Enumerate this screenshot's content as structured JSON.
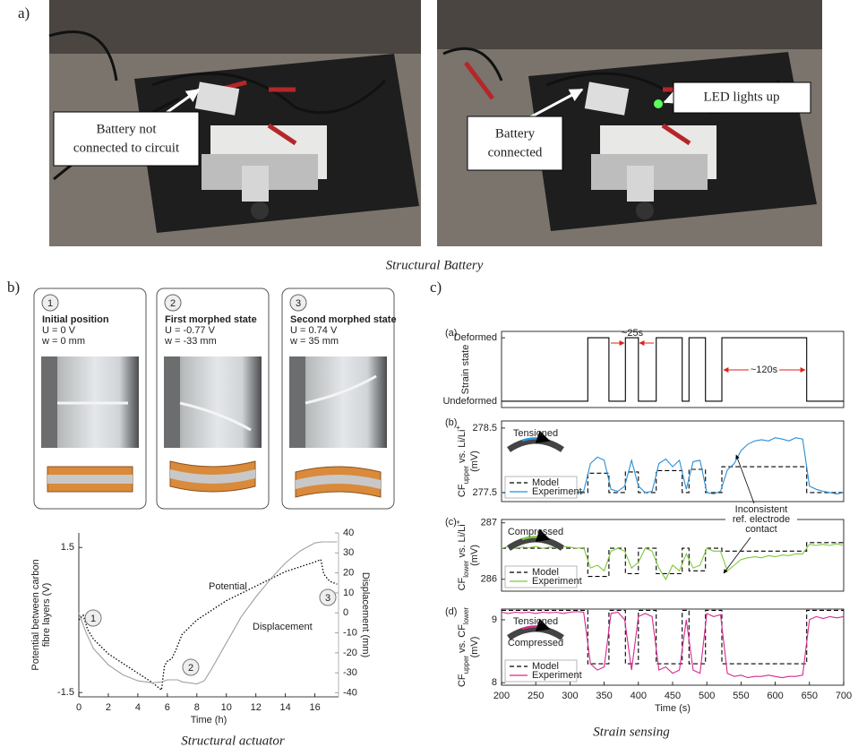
{
  "panel_a": {
    "label": "a)",
    "callout_left": [
      "Battery not",
      "connected to circuit"
    ],
    "callout_right": [
      "Battery",
      "connected"
    ],
    "callout_led": "LED lights up",
    "caption": "Structural Battery"
  },
  "panel_b": {
    "label": "b)",
    "caption": "Structural actuator",
    "states": [
      {
        "number": "1",
        "title": "Initial position",
        "voltage": "U = 0 V",
        "displacement": "w = 0 mm"
      },
      {
        "number": "2",
        "title": "First morphed state",
        "voltage": "U = -0.77 V",
        "displacement": "w = -33 mm"
      },
      {
        "number": "3",
        "title": "Second morphed state",
        "voltage": "U = 0.74 V",
        "displacement": "w = 35 mm"
      }
    ],
    "markers": [
      "1",
      "2",
      "3"
    ]
  },
  "panel_c": {
    "label": "c)",
    "caption": "Strain sensing",
    "subplot_labels": [
      "(a)",
      "(b)",
      "(c)",
      "(d)"
    ],
    "note": [
      "Inconsistent",
      "ref. electrode",
      "contact"
    ]
  },
  "chart_data": [
    {
      "type": "line",
      "xlabel": "Time (h)",
      "ylabel": [
        "Potential between carbon",
        "fibre layers (V)"
      ],
      "y2label": "Displacement (mm)",
      "xlim": [
        0,
        17.6
      ],
      "xticks": [
        0,
        2,
        4,
        6,
        8,
        10,
        12,
        14,
        16
      ],
      "ylim": [
        -1.59,
        1.8
      ],
      "yticks": [
        -1.5,
        1.5
      ],
      "y2lim": [
        -42,
        40
      ],
      "y2ticks": [
        -40,
        -30,
        -20,
        -10,
        0,
        10,
        20,
        30,
        40
      ],
      "series": [
        {
          "name": "Potential",
          "color": "#000000",
          "style": "dotted",
          "x": [
            0,
            0.3,
            0.6,
            1,
            2,
            3,
            4,
            5,
            5.6,
            5.8,
            6,
            6.3,
            6.6,
            7,
            8,
            9,
            10,
            11,
            12,
            13,
            14,
            15,
            16,
            16.4,
            16.6,
            17,
            17.5
          ],
          "values": [
            0,
            0.1,
            -0.2,
            -0.4,
            -0.7,
            -0.9,
            -1.1,
            -1.3,
            -1.45,
            -0.95,
            -0.85,
            -0.8,
            -0.6,
            -0.3,
            0,
            0.2,
            0.4,
            0.55,
            0.7,
            0.85,
            1,
            1.1,
            1.2,
            1.25,
            0.95,
            0.8,
            0.74
          ]
        },
        {
          "name": "Displacement",
          "color": "#a0a0a0",
          "axis": "y2",
          "x": [
            0,
            0.5,
            1,
            2,
            3,
            4,
            5,
            5.6,
            6,
            6.7,
            7,
            8,
            8.5,
            9,
            10,
            11,
            12,
            13,
            14,
            15,
            16,
            16.5,
            17,
            17.5
          ],
          "values": [
            0,
            -10,
            -18,
            -26,
            -31,
            -34,
            -35,
            -34.5,
            -33.5,
            -33.5,
            -34.5,
            -35.5,
            -34,
            -28,
            -15,
            -2,
            8,
            17,
            25,
            31,
            35,
            35.5,
            35.5,
            35.5
          ]
        }
      ]
    },
    {
      "type": "line",
      "frame": true,
      "ylabel": [
        {
          "text": "Strain state"
        }
      ],
      "annotations": [
        "~25s",
        "~120s"
      ],
      "xlim": [
        200,
        700
      ],
      "ylim": [
        -0.1,
        1.1
      ],
      "yticks": [
        {
          "value": 1,
          "label": "Deformed"
        },
        {
          "value": 0,
          "label": "Undeformed"
        }
      ],
      "series": [
        {
          "color": "#000000",
          "x": [
            200,
            326,
            326,
            357,
            357,
            381,
            381,
            400,
            400,
            426,
            426,
            464,
            464,
            474,
            474,
            498,
            498,
            522,
            522,
            646,
            646,
            700
          ],
          "values": [
            0,
            0,
            1,
            1,
            0,
            0,
            1,
            1,
            0,
            0,
            1,
            1,
            0,
            0,
            1,
            1,
            0,
            0,
            1,
            1,
            0,
            0
          ]
        }
      ]
    },
    {
      "type": "line",
      "frame": true,
      "legend": "lower left",
      "inset_labels": [
        "Tensioned"
      ],
      "ylabel": [
        {
          "text": "CF"
        },
        {
          "text": "upper",
          "shift": "sub"
        },
        {
          "text": " vs. Li/Li"
        },
        {
          "text": "+",
          "shift": "super"
        }
      ],
      "yunit": "(mV)",
      "xlim": [
        200,
        700
      ],
      "ylim": [
        277.36,
        278.61
      ],
      "yticks": [
        277.5,
        278.5
      ],
      "series": [
        {
          "name": "Model",
          "color": "#000000",
          "style": "dashed",
          "x": [
            200,
            326,
            326,
            357,
            357,
            381,
            381,
            400,
            400,
            426,
            426,
            464,
            464,
            474,
            474,
            498,
            498,
            522,
            522,
            646,
            646,
            700
          ],
          "values": [
            277.5,
            277.5,
            277.8,
            277.8,
            277.5,
            277.5,
            277.82,
            277.82,
            277.5,
            277.5,
            277.84,
            277.84,
            277.5,
            277.5,
            277.86,
            277.86,
            277.5,
            277.5,
            277.9,
            277.9,
            277.5,
            277.5
          ]
        },
        {
          "name": "Experiment",
          "color": "#2a8fd6",
          "x": [
            200,
            210,
            220,
            230,
            240,
            250,
            260,
            270,
            280,
            290,
            300,
            310,
            320,
            330,
            340,
            350,
            360,
            370,
            380,
            390,
            400,
            410,
            420,
            430,
            440,
            450,
            460,
            470,
            480,
            490,
            500,
            510,
            520,
            530,
            540,
            550,
            560,
            570,
            580,
            590,
            600,
            610,
            620,
            630,
            640,
            650,
            660,
            670,
            680,
            690,
            700
          ],
          "values": [
            277.5,
            277.48,
            277.52,
            277.49,
            277.51,
            277.5,
            277.47,
            277.52,
            277.5,
            277.49,
            277.51,
            277.5,
            277.52,
            277.95,
            278.05,
            278,
            277.55,
            277.52,
            277.6,
            278,
            277.6,
            277.5,
            277.52,
            277.95,
            278.02,
            277.9,
            278,
            277.55,
            277.98,
            278,
            277.5,
            277.48,
            277.52,
            277.85,
            277.95,
            278.15,
            278.25,
            278.3,
            278.32,
            278.3,
            278.35,
            278.33,
            278.3,
            278.35,
            278.33,
            277.6,
            277.55,
            277.52,
            277.5,
            277.48,
            277.5
          ]
        }
      ]
    },
    {
      "type": "line",
      "frame": true,
      "legend": "lower left",
      "inset_labels": [
        "Compressed"
      ],
      "ylabel": [
        {
          "text": "CF"
        },
        {
          "text": "lower",
          "shift": "sub"
        },
        {
          "text": " vs. Li/Li"
        },
        {
          "text": "+",
          "shift": "super"
        }
      ],
      "yunit": "(mV)",
      "xlim": [
        200,
        700
      ],
      "ylim": [
        285.79,
        287.06
      ],
      "yticks": [
        286,
        287
      ],
      "series": [
        {
          "name": "Model",
          "color": "#000000",
          "style": "dashed",
          "x": [
            200,
            326,
            326,
            357,
            357,
            381,
            381,
            400,
            400,
            426,
            426,
            464,
            464,
            474,
            474,
            498,
            498,
            522,
            522,
            646,
            646,
            700
          ],
          "values": [
            286.55,
            286.55,
            286.05,
            286.05,
            286.55,
            286.55,
            286.1,
            286.1,
            286.55,
            286.55,
            286.1,
            286.1,
            286.55,
            286.55,
            286.15,
            286.15,
            286.55,
            286.55,
            286.5,
            286.5,
            286.65,
            286.65
          ]
        },
        {
          "name": "Experiment",
          "color": "#7ec83a",
          "x": [
            200,
            210,
            220,
            230,
            240,
            250,
            260,
            270,
            280,
            290,
            300,
            310,
            320,
            330,
            340,
            350,
            360,
            370,
            380,
            390,
            400,
            410,
            420,
            430,
            440,
            450,
            460,
            470,
            480,
            490,
            500,
            510,
            520,
            530,
            540,
            550,
            560,
            570,
            580,
            590,
            600,
            610,
            620,
            630,
            640,
            650,
            660,
            670,
            680,
            690,
            700
          ],
          "values": [
            286.55,
            286.58,
            286.55,
            286.57,
            286.56,
            286.58,
            286.55,
            286.57,
            286.56,
            286.58,
            286.57,
            286.55,
            286.56,
            286.2,
            286.25,
            286.15,
            286.5,
            286.55,
            286.5,
            286.2,
            286.3,
            286.55,
            286.5,
            286.2,
            286,
            286.25,
            286.15,
            286.45,
            286.2,
            286.25,
            286.55,
            286.5,
            286.5,
            286.15,
            286.25,
            286.35,
            286.38,
            286.4,
            286.38,
            286.42,
            286.4,
            286.43,
            286.42,
            286.45,
            286.45,
            286.62,
            286.6,
            286.62,
            286.6,
            286.63,
            286.6
          ]
        }
      ]
    },
    {
      "type": "line",
      "frame": true,
      "legend": "lower left",
      "inset_labels": [
        "Tensioned",
        "Compressed"
      ],
      "xlabel": "Time (s)",
      "ylabel": [
        {
          "text": "CF"
        },
        {
          "text": "upper",
          "shift": "sub"
        },
        {
          "text": " vs. CF"
        },
        {
          "text": "lower",
          "shift": "sub"
        }
      ],
      "yunit": "(mV)",
      "xlim": [
        200,
        700
      ],
      "xticks": [
        200,
        250,
        300,
        350,
        400,
        450,
        500,
        550,
        600,
        650,
        700
      ],
      "ylim": [
        7.96,
        9.17
      ],
      "yticks": [
        8,
        9
      ],
      "series": [
        {
          "name": "Model",
          "color": "#000000",
          "style": "dashed",
          "x": [
            200,
            326,
            326,
            357,
            357,
            381,
            381,
            400,
            400,
            426,
            426,
            464,
            464,
            474,
            474,
            498,
            498,
            522,
            522,
            646,
            646,
            700
          ],
          "values": [
            9.15,
            9.15,
            8.3,
            8.3,
            9.15,
            9.15,
            8.3,
            8.3,
            9.15,
            9.15,
            8.3,
            8.3,
            9.15,
            9.15,
            8.3,
            8.3,
            9.15,
            9.15,
            8.3,
            8.3,
            9.15,
            9.15
          ]
        },
        {
          "name": "Experiment",
          "color": "#d6288f",
          "x": [
            200,
            210,
            220,
            230,
            240,
            250,
            260,
            270,
            280,
            290,
            300,
            310,
            320,
            330,
            340,
            350,
            360,
            370,
            380,
            390,
            400,
            410,
            420,
            430,
            440,
            450,
            460,
            470,
            480,
            490,
            500,
            510,
            520,
            530,
            540,
            550,
            560,
            570,
            580,
            590,
            600,
            610,
            620,
            630,
            640,
            650,
            660,
            670,
            680,
            690,
            700
          ],
          "values": [
            9.12,
            9.1,
            9.12,
            9.11,
            9.12,
            9.1,
            9.12,
            9.11,
            9.12,
            9.1,
            9.12,
            9.13,
            9.12,
            8.3,
            8.2,
            8.25,
            9.1,
            9.12,
            9,
            8.2,
            9.05,
            9.1,
            9.05,
            8.2,
            8.25,
            8.15,
            8.2,
            9,
            8.2,
            8.15,
            9.1,
            9.05,
            9.08,
            8.15,
            8.1,
            8.12,
            8.08,
            8.1,
            8.1,
            8.12,
            8.1,
            8.08,
            8.1,
            8.1,
            8.12,
            9,
            9.05,
            9.02,
            9.05,
            9.03,
            9.05
          ]
        }
      ]
    }
  ]
}
